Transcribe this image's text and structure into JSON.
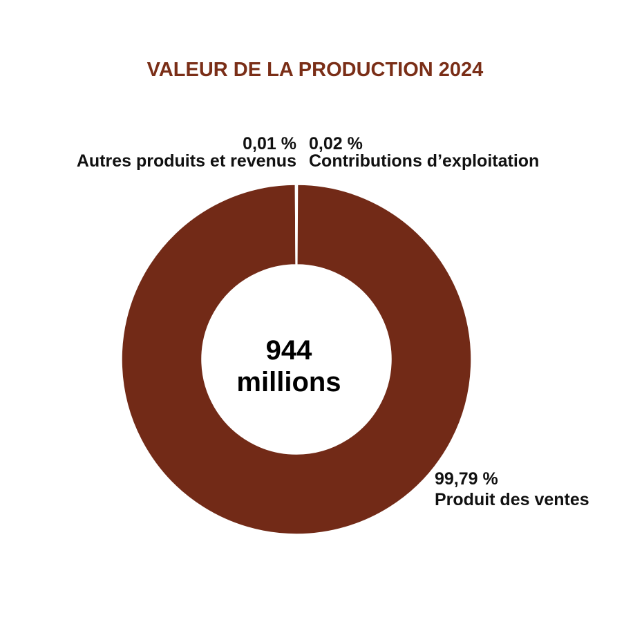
{
  "chart_data": {
    "type": "pie",
    "variant": "donut",
    "title": "VALEUR DE LA PRODUCTION 2024",
    "center_value": "944",
    "center_unit": "millions",
    "slices": [
      {
        "name": "Produit des ventes",
        "label": "99,79 %",
        "value": 99.79
      },
      {
        "name": "Autres produits et revenus",
        "label": "0,01 %",
        "value": 0.01
      },
      {
        "name": "Contributions d’exploitation",
        "label": "0,02 %",
        "value": 0.02
      }
    ],
    "colors": {
      "title": "#7a2e17",
      "slice": "#722a17",
      "separator": "#ffffff"
    }
  }
}
